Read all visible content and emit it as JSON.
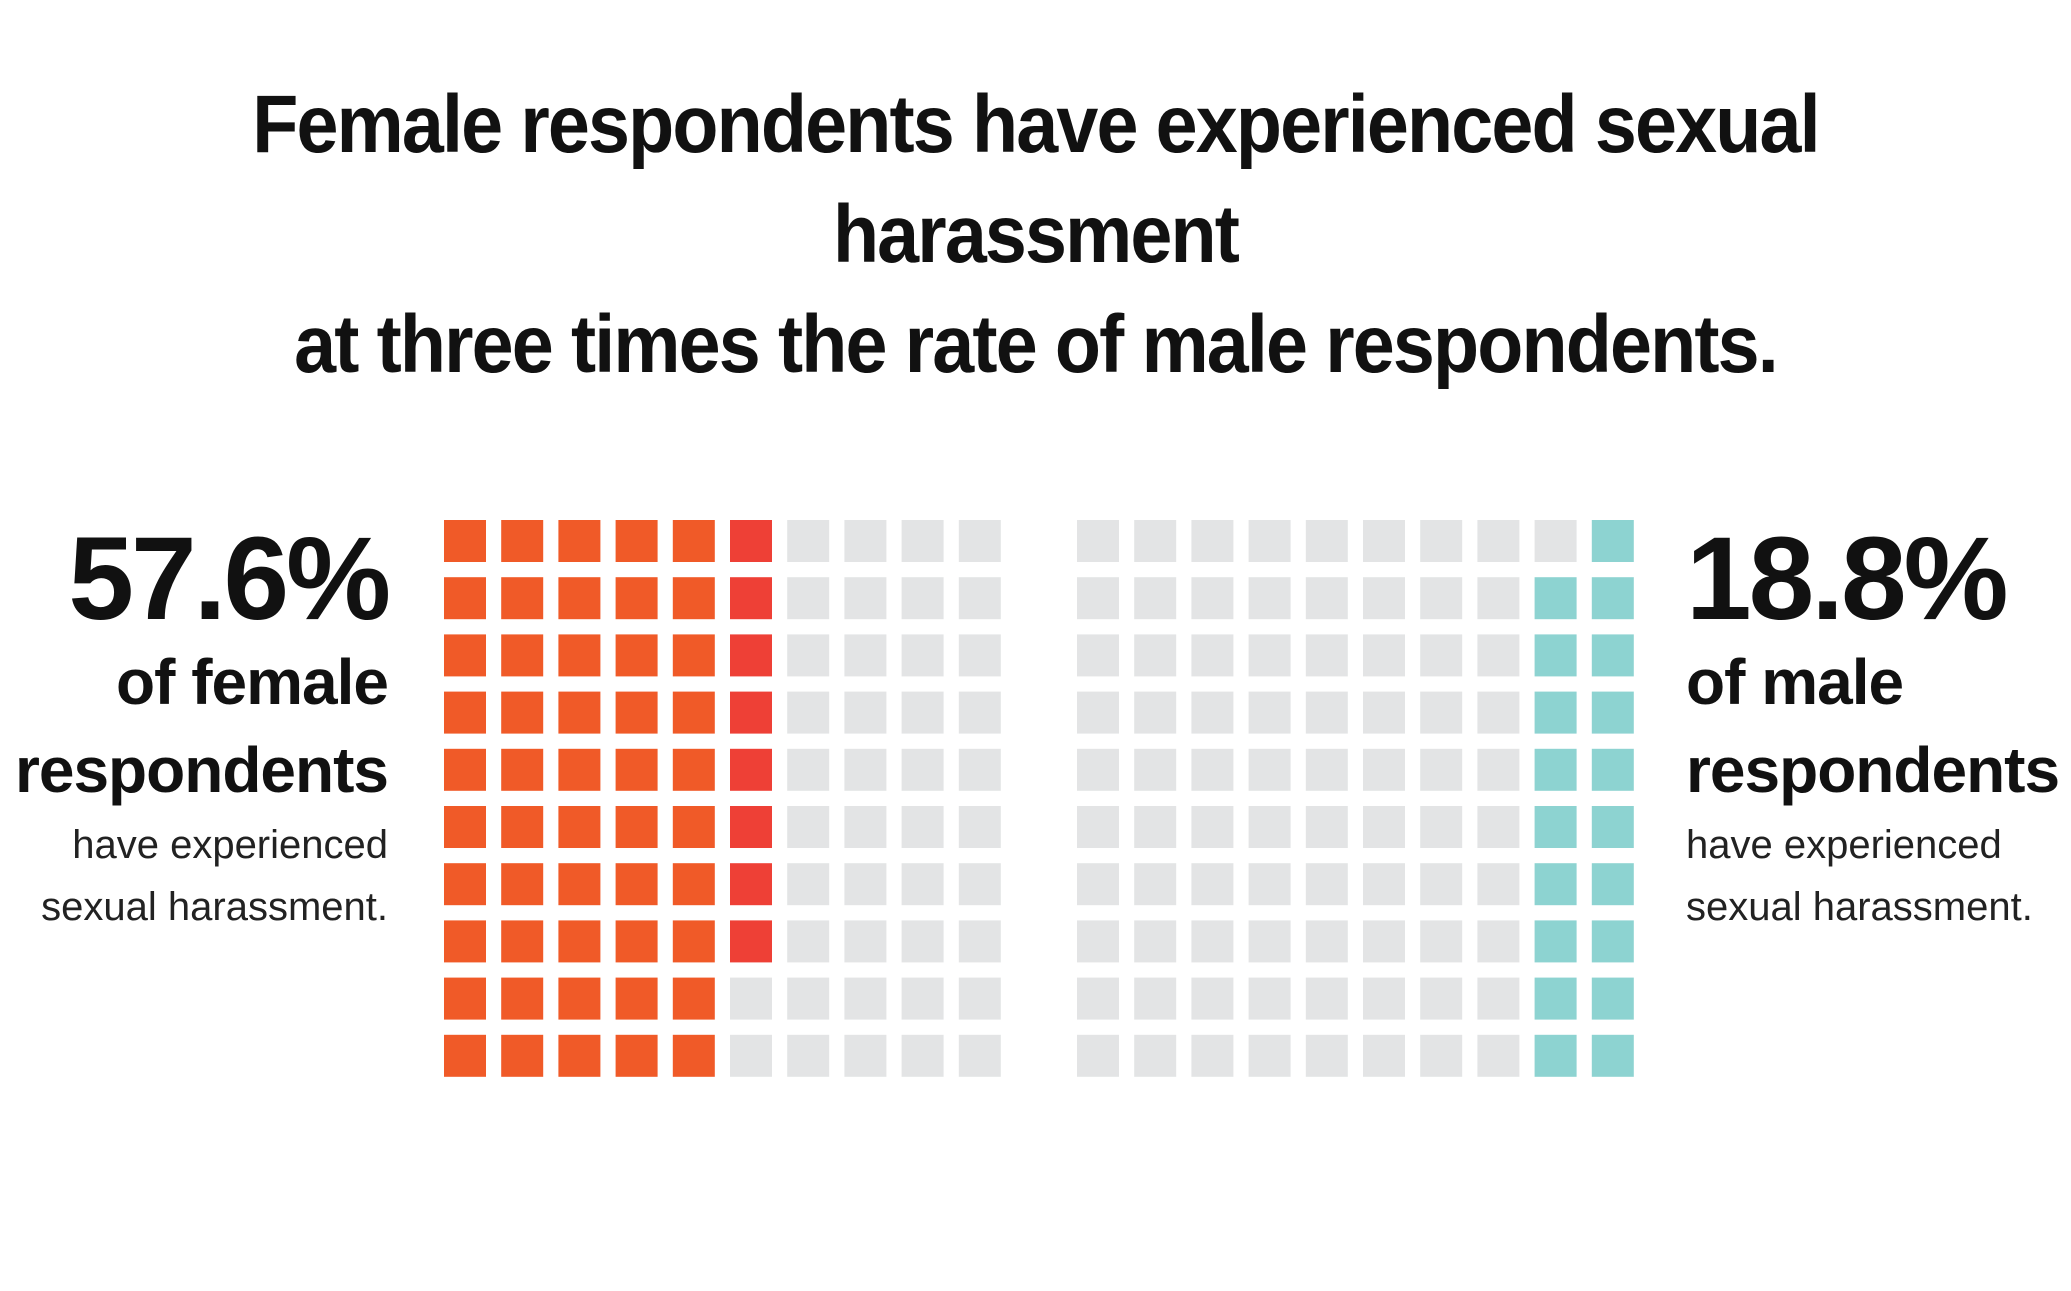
{
  "title": {
    "line1": "Female respondents have experienced sexual harassment",
    "line2": "at three times the rate of male respondents."
  },
  "female": {
    "percent": "57.6%",
    "group_line1": "of female",
    "group_line2": "respondents",
    "desc_line1": "have experienced",
    "desc_line2": "sexual harassment."
  },
  "male": {
    "percent": "18.8%",
    "group_line1": "of male",
    "group_line2": "respondents",
    "desc_line1": "have experienced",
    "desc_line2": "sexual harassment."
  },
  "chart_data": {
    "type": "waffle",
    "grid": {
      "rows": 10,
      "cols": 10,
      "total": 100
    },
    "series": [
      {
        "name": "of female respondents",
        "value": 57.6,
        "fill_order": "left-to-right by column, top-to-bottom",
        "colors": {
          "filled": "#f05a28",
          "partial_column": "#ee4036",
          "empty": "#e3e4e5"
        }
      },
      {
        "name": "of male respondents",
        "value": 18.8,
        "fill_order": "right-to-left by column, bottom-to-top",
        "colors": {
          "filled": "#8dd3d1",
          "empty": "#e3e4e5"
        }
      }
    ]
  }
}
